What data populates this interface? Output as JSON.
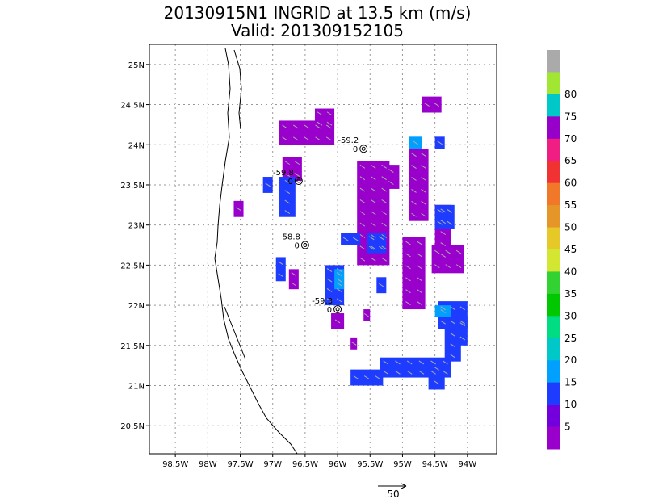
{
  "chart_data": {
    "type": "heatmap",
    "title": "20130915N1 INGRID at 13.5 km (m/s)",
    "subtitle": "Valid: 201309152105",
    "xlim": [
      -98.9,
      -93.55
    ],
    "ylim": [
      20.15,
      25.25
    ],
    "x_ticks": [
      {
        "value": -98.5,
        "label": "98.5W"
      },
      {
        "value": -98,
        "label": "98W"
      },
      {
        "value": -97.5,
        "label": "97.5W"
      },
      {
        "value": -97,
        "label": "97W"
      },
      {
        "value": -96.5,
        "label": "96.5W"
      },
      {
        "value": -96,
        "label": "96W"
      },
      {
        "value": -95.5,
        "label": "95.5W"
      },
      {
        "value": -95,
        "label": "95W"
      },
      {
        "value": -94.5,
        "label": "94.5W"
      },
      {
        "value": -94,
        "label": "94W"
      }
    ],
    "y_ticks": [
      {
        "value": 20.5,
        "label": "20.5N"
      },
      {
        "value": 21,
        "label": "21N"
      },
      {
        "value": 21.5,
        "label": "21.5N"
      },
      {
        "value": 22,
        "label": "22N"
      },
      {
        "value": 22.5,
        "label": "22.5N"
      },
      {
        "value": 23,
        "label": "23N"
      },
      {
        "value": 23.5,
        "label": "23.5N"
      },
      {
        "value": 24,
        "label": "24N"
      },
      {
        "value": 24.5,
        "label": "24.5N"
      },
      {
        "value": 25,
        "label": "25N"
      }
    ],
    "grid": true,
    "colorbar": {
      "labels": [
        "5",
        "10",
        "15",
        "20",
        "25",
        "30",
        "35",
        "40",
        "45",
        "50",
        "55",
        "60",
        "65",
        "70",
        "75",
        "80"
      ],
      "colors": [
        "#9900cc",
        "#7300dc",
        "#1e3cff",
        "#00a0ff",
        "#00c8c8",
        "#00dc82",
        "#00c800",
        "#32d232",
        "#d2e632",
        "#e6c828",
        "#e69628",
        "#f07828",
        "#f03232",
        "#f01e82",
        "#9600c8",
        "#00c8c8",
        "#a0e632",
        "#aaaaaa"
      ]
    },
    "cells": [
      {
        "lon": -96.9,
        "lat": 24.0,
        "w": 0.85,
        "h": 0.3,
        "value": 5
      },
      {
        "lon": -96.35,
        "lat": 24.2,
        "w": 0.3,
        "h": 0.25,
        "value": 5
      },
      {
        "lon": -96.85,
        "lat": 23.55,
        "w": 0.3,
        "h": 0.3,
        "value": 5
      },
      {
        "lon": -96.9,
        "lat": 23.1,
        "w": 0.25,
        "h": 0.5,
        "value": 10
      },
      {
        "lon": -97.15,
        "lat": 23.4,
        "w": 0.15,
        "h": 0.2,
        "value": 10
      },
      {
        "lon": -97.6,
        "lat": 23.1,
        "w": 0.15,
        "h": 0.2,
        "value": 5
      },
      {
        "lon": -96.95,
        "lat": 22.3,
        "w": 0.15,
        "h": 0.3,
        "value": 10
      },
      {
        "lon": -96.75,
        "lat": 22.2,
        "w": 0.15,
        "h": 0.25,
        "value": 5
      },
      {
        "lon": -95.7,
        "lat": 22.5,
        "w": 0.5,
        "h": 1.3,
        "value": 5
      },
      {
        "lon": -95.55,
        "lat": 22.65,
        "w": 0.3,
        "h": 0.25,
        "value": 10
      },
      {
        "lon": -95.95,
        "lat": 22.75,
        "w": 0.3,
        "h": 0.15,
        "value": 10
      },
      {
        "lon": -95.3,
        "lat": 23.45,
        "w": 0.25,
        "h": 0.3,
        "value": 5
      },
      {
        "lon": -94.9,
        "lat": 23.05,
        "w": 0.3,
        "h": 0.9,
        "value": 5
      },
      {
        "lon": -94.9,
        "lat": 23.95,
        "w": 0.2,
        "h": 0.15,
        "value": 15
      },
      {
        "lon": -94.5,
        "lat": 23.95,
        "w": 0.15,
        "h": 0.15,
        "value": 10
      },
      {
        "lon": -94.7,
        "lat": 24.4,
        "w": 0.3,
        "h": 0.2,
        "value": 5
      },
      {
        "lon": -95.0,
        "lat": 21.95,
        "w": 0.35,
        "h": 0.9,
        "value": 5
      },
      {
        "lon": -95.4,
        "lat": 22.15,
        "w": 0.15,
        "h": 0.2,
        "value": 10
      },
      {
        "lon": -96.2,
        "lat": 22.0,
        "w": 0.3,
        "h": 0.5,
        "value": 10
      },
      {
        "lon": -96.05,
        "lat": 22.2,
        "w": 0.15,
        "h": 0.25,
        "value": 15
      },
      {
        "lon": -96.1,
        "lat": 21.7,
        "w": 0.2,
        "h": 0.2,
        "value": 5
      },
      {
        "lon": -95.6,
        "lat": 21.8,
        "w": 0.1,
        "h": 0.15,
        "value": 5
      },
      {
        "lon": -95.8,
        "lat": 21.45,
        "w": 0.1,
        "h": 0.15,
        "value": 5
      },
      {
        "lon": -94.5,
        "lat": 22.55,
        "w": 0.25,
        "h": 0.7,
        "value": 5
      },
      {
        "lon": -94.55,
        "lat": 22.4,
        "w": 0.5,
        "h": 0.35,
        "value": 5
      },
      {
        "lon": -94.5,
        "lat": 22.95,
        "w": 0.3,
        "h": 0.3,
        "value": 10
      },
      {
        "lon": -94.45,
        "lat": 21.7,
        "w": 0.45,
        "h": 0.35,
        "value": 10
      },
      {
        "lon": -94.5,
        "lat": 21.85,
        "w": 0.25,
        "h": 0.15,
        "value": 15
      },
      {
        "lon": -94.35,
        "lat": 21.3,
        "w": 0.25,
        "h": 0.4,
        "value": 10
      },
      {
        "lon": -95.35,
        "lat": 21.1,
        "w": 1.1,
        "h": 0.25,
        "value": 10
      },
      {
        "lon": -95.8,
        "lat": 21.0,
        "w": 0.5,
        "h": 0.2,
        "value": 10
      },
      {
        "lon": -94.6,
        "lat": 20.95,
        "w": 0.25,
        "h": 0.35,
        "value": 10
      },
      {
        "lon": -94.15,
        "lat": 21.5,
        "w": 0.15,
        "h": 0.35,
        "value": 10
      }
    ],
    "wind_centers": [
      {
        "lon": -96.6,
        "lat": 23.55,
        "label": "-59.8",
        "label2": "0"
      },
      {
        "lon": -95.6,
        "lat": 23.95,
        "label": "-59.2",
        "label2": "0"
      },
      {
        "lon": -96.5,
        "lat": 22.75,
        "label": "-58.8",
        "label2": "0"
      },
      {
        "lon": -96.0,
        "lat": 21.95,
        "label": "-59.3",
        "label2": "0"
      }
    ],
    "reference_vector_label": "50"
  }
}
